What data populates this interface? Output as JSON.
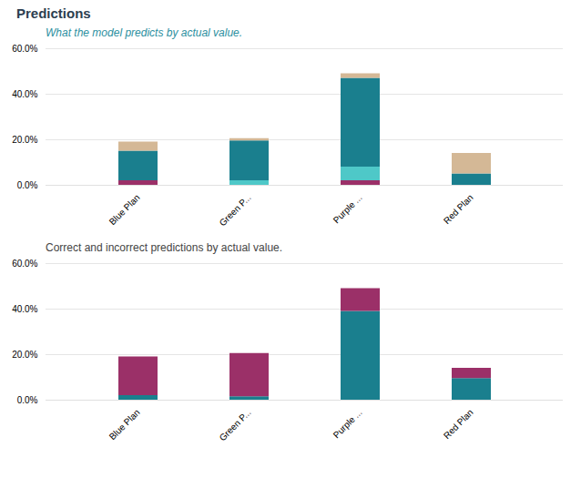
{
  "title": "Predictions",
  "chart_data": [
    {
      "type": "bar",
      "title": "What the model predicts by actual value.",
      "categories": [
        "Blue Plan",
        "Green P...",
        "Purple ...",
        "Red Plan"
      ],
      "stacked": true,
      "grid": true,
      "series": [
        {
          "color": "#9b3068",
          "values": [
            0.02,
            0.0,
            0.02,
            0.0
          ]
        },
        {
          "color": "#4ec8c8",
          "values": [
            0.0,
            0.02,
            0.06,
            0.0
          ]
        },
        {
          "color": "#1a7f8e",
          "values": [
            0.13,
            0.175,
            0.39,
            0.05
          ]
        },
        {
          "color": "#d4b896",
          "values": [
            0.04,
            0.01,
            0.02,
            0.09
          ]
        }
      ],
      "ylim": [
        0,
        0.6
      ],
      "yticks": [
        {
          "value": 0.0,
          "label": "0.0%"
        },
        {
          "value": 0.2,
          "label": "20.0%"
        },
        {
          "value": 0.4,
          "label": "40.0%"
        },
        {
          "value": 0.6,
          "label": "60.0%"
        }
      ]
    },
    {
      "type": "bar",
      "title": "Correct and incorrect predictions by actual value.",
      "categories": [
        "Blue Plan",
        "Green P...",
        "Purple ...",
        "Red Plan"
      ],
      "stacked": true,
      "grid": true,
      "series": [
        {
          "color": "#1a7f8e",
          "values": [
            0.02,
            0.015,
            0.39,
            0.095
          ]
        },
        {
          "color": "#9b3068",
          "values": [
            0.17,
            0.19,
            0.1,
            0.045
          ]
        }
      ],
      "ylim": [
        0,
        0.6
      ],
      "yticks": [
        {
          "value": 0.0,
          "label": "0.0%"
        },
        {
          "value": 0.2,
          "label": "20.0%"
        },
        {
          "value": 0.4,
          "label": "40.0%"
        },
        {
          "value": 0.6,
          "label": "60.0%"
        }
      ]
    }
  ]
}
